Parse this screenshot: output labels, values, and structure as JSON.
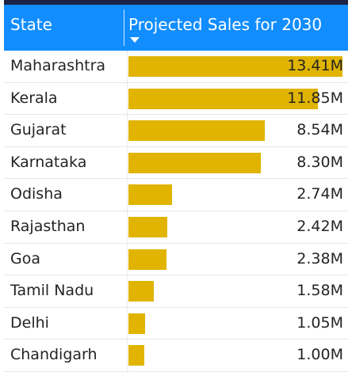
{
  "table": {
    "headers": {
      "state": "State",
      "projected_sales": "Projected Sales for 2030"
    },
    "sort": {
      "column": "projected_sales",
      "direction": "descending",
      "icon": "sort-descending-icon"
    },
    "bar_color": "#e0b400",
    "header_color": "#118dff",
    "bar_max_value": 13.41,
    "rows": [
      {
        "state": "Maharashtra",
        "value_label": "13.41M",
        "value": 13.41
      },
      {
        "state": "Kerala",
        "value_label": "11.85M",
        "value": 11.85
      },
      {
        "state": "Gujarat",
        "value_label": "8.54M",
        "value": 8.54
      },
      {
        "state": "Karnataka",
        "value_label": "8.30M",
        "value": 8.3
      },
      {
        "state": "Odisha",
        "value_label": "2.74M",
        "value": 2.74
      },
      {
        "state": "Rajasthan",
        "value_label": "2.42M",
        "value": 2.42
      },
      {
        "state": "Goa",
        "value_label": "2.38M",
        "value": 2.38
      },
      {
        "state": "Tamil Nadu",
        "value_label": "1.58M",
        "value": 1.58
      },
      {
        "state": "Delhi",
        "value_label": "1.05M",
        "value": 1.05
      },
      {
        "state": "Chandigarh",
        "value_label": "1.00M",
        "value": 1.0
      }
    ]
  }
}
